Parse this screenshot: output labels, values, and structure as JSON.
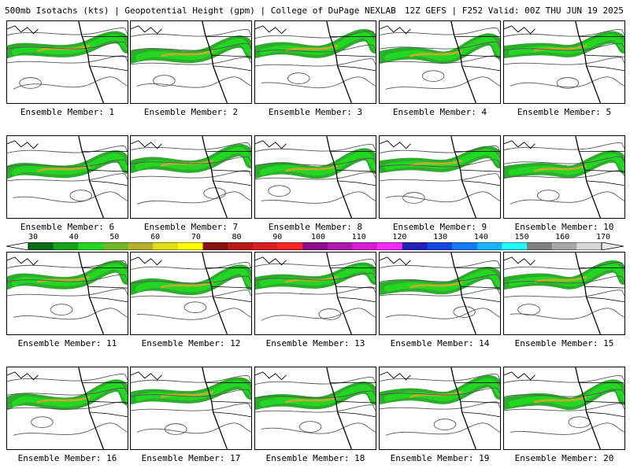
{
  "header": {
    "left": "500mb Isotachs (kts) | Geopotential Height (gpm) | College of DuPage NEXLAB",
    "right": "12Z GEFS | F252 Valid: 00Z THU JUN 19 2025"
  },
  "legend": {
    "ticks": [
      "30",
      "40",
      "50",
      "60",
      "70",
      "80",
      "90",
      "100",
      "110",
      "120",
      "130",
      "140",
      "150",
      "160",
      "170"
    ],
    "colors": [
      "#0b6b16",
      "#17a317",
      "#22d622",
      "#70b826",
      "#b8b02a",
      "#e0e014",
      "#ffff00",
      "#8b1212",
      "#b81a1a",
      "#d81f1f",
      "#ff2222",
      "#8c0e8c",
      "#b01ab0",
      "#d61cd6",
      "#ff28ff",
      "#2222b8",
      "#1446e6",
      "#147aff",
      "#14b4ff",
      "#22ffff",
      "#808080",
      "#a8a8a8",
      "#d8d8d8"
    ]
  },
  "members": [
    {
      "label": "Ensemble Member: 1"
    },
    {
      "label": "Ensemble Member: 2"
    },
    {
      "label": "Ensemble Member: 3"
    },
    {
      "label": "Ensemble Member: 4"
    },
    {
      "label": "Ensemble Member: 5"
    },
    {
      "label": "Ensemble Member: 6"
    },
    {
      "label": "Ensemble Member: 7"
    },
    {
      "label": "Ensemble Member: 8"
    },
    {
      "label": "Ensemble Member: 9"
    },
    {
      "label": "Ensemble Member: 10"
    },
    {
      "label": "Ensemble Member: 11"
    },
    {
      "label": "Ensemble Member: 12"
    },
    {
      "label": "Ensemble Member: 13"
    },
    {
      "label": "Ensemble Member: 14"
    },
    {
      "label": "Ensemble Member: 15"
    },
    {
      "label": "Ensemble Member: 16"
    },
    {
      "label": "Ensemble Member: 17"
    },
    {
      "label": "Ensemble Member: 18"
    },
    {
      "label": "Ensemble Member: 19"
    },
    {
      "label": "Ensemble Member: 20"
    }
  ]
}
